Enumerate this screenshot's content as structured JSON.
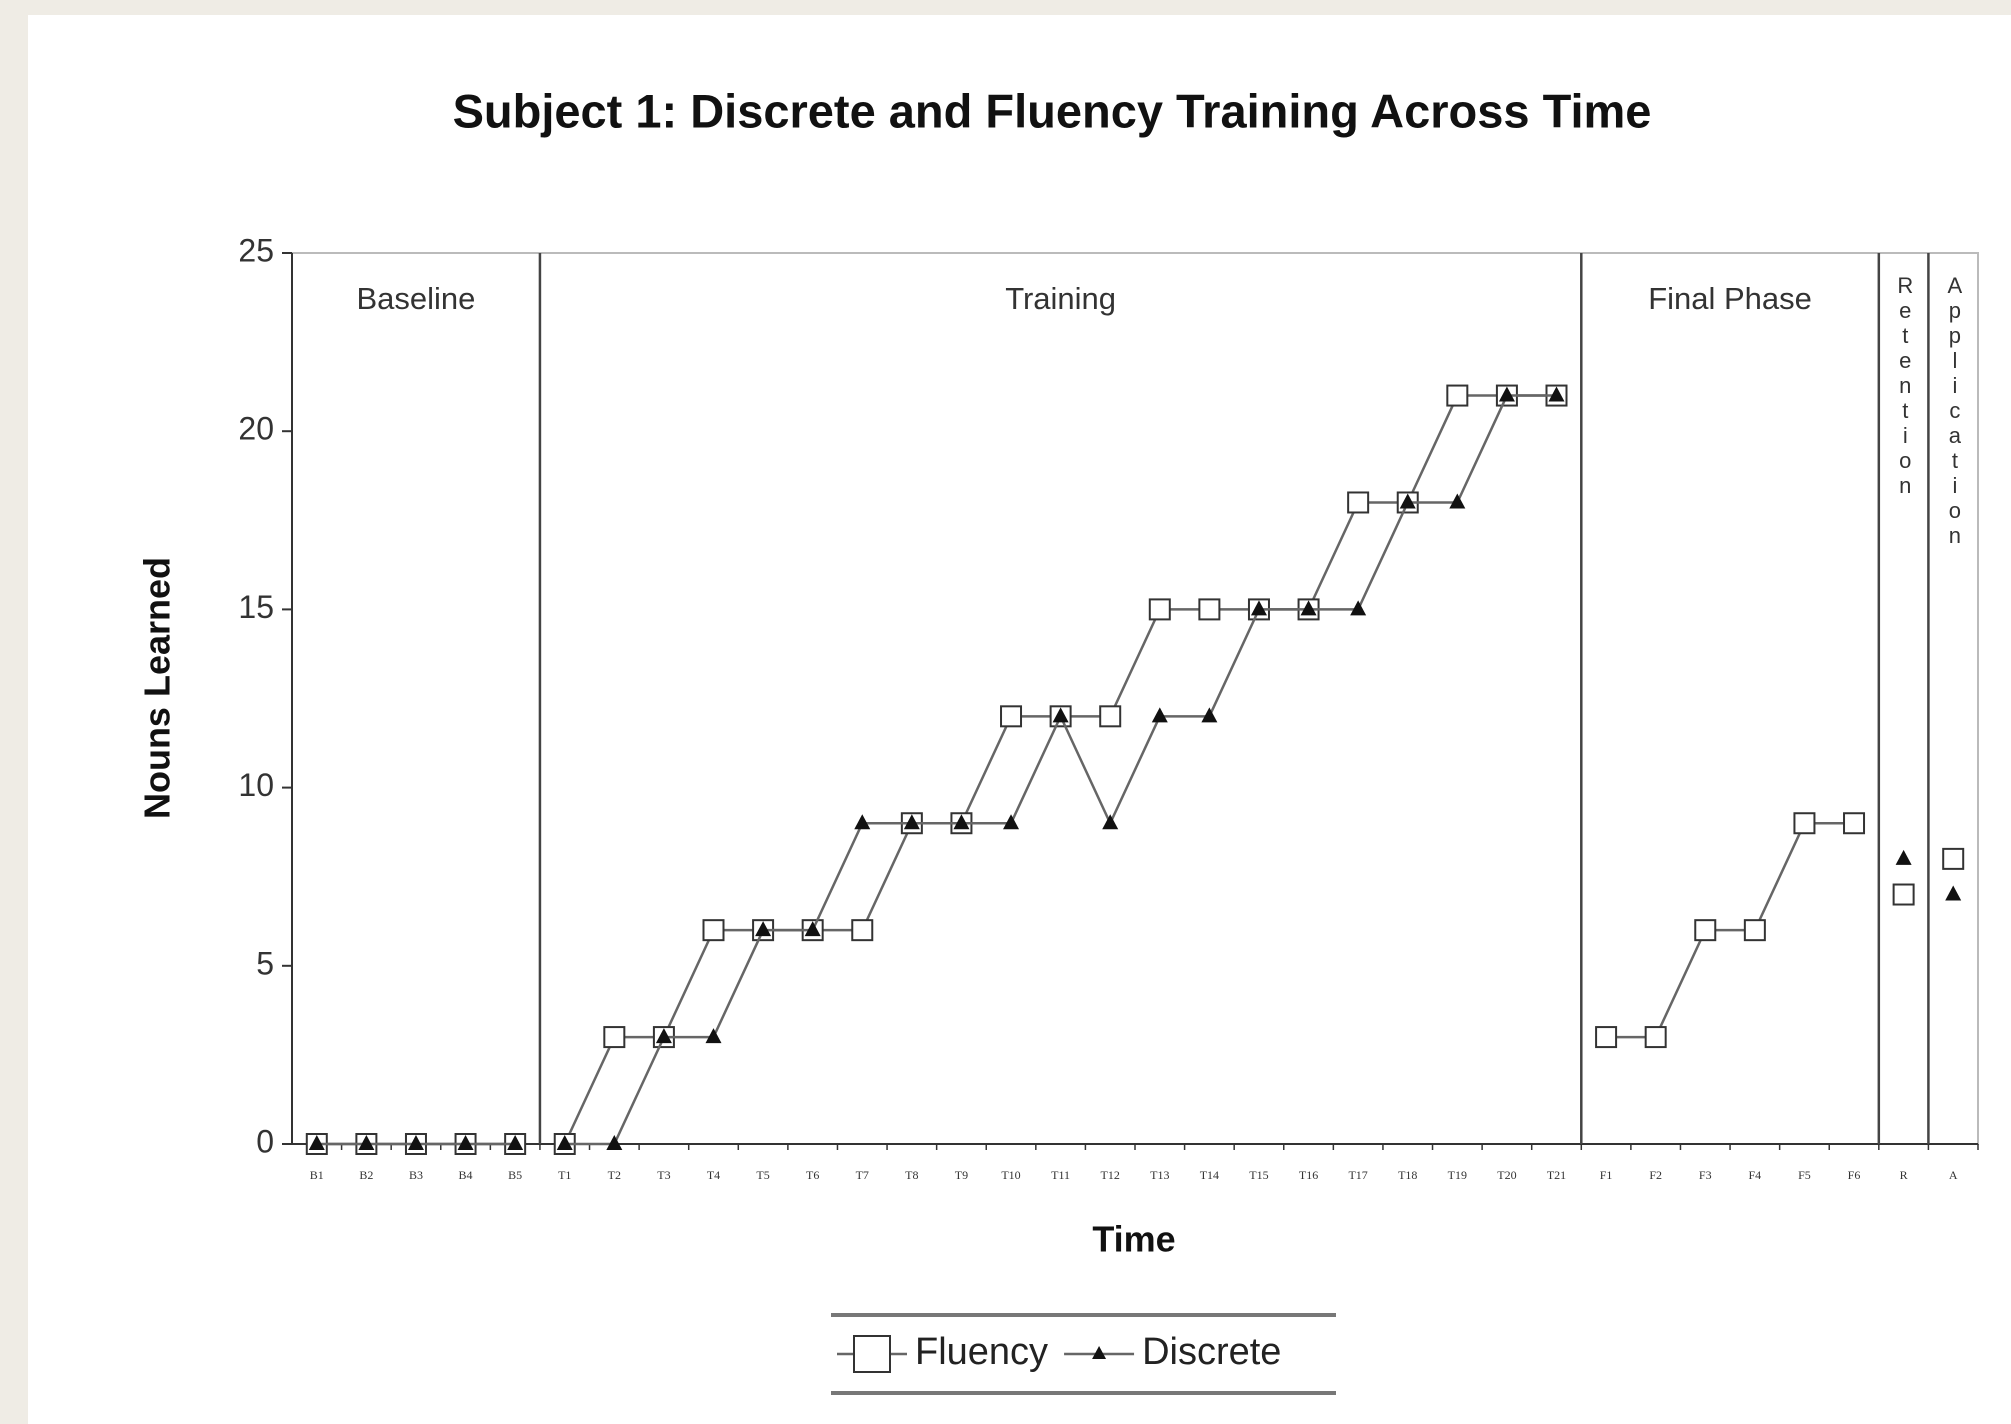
{
  "chart_data": {
    "type": "line",
    "title": "Subject 1: Discrete and Fluency Training Across Time",
    "xlabel": "Time",
    "ylabel": "Nouns Learned",
    "categories": [
      "B1",
      "B2",
      "B3",
      "B4",
      "B5",
      "T1",
      "T2",
      "T3",
      "T4",
      "T5",
      "T6",
      "T7",
      "T8",
      "T9",
      "T10",
      "T11",
      "T12",
      "T13",
      "T14",
      "T15",
      "T16",
      "T17",
      "T18",
      "T19",
      "T20",
      "T21",
      "F1",
      "F2",
      "F3",
      "F4",
      "F5",
      "F6",
      "R",
      "A"
    ],
    "phases": [
      {
        "label": "Baseline",
        "start": "B1",
        "end": "B5"
      },
      {
        "label": "Training",
        "start": "T1",
        "end": "T21"
      },
      {
        "label": "Final Phase",
        "start": "F1",
        "end": "F6"
      },
      {
        "label": "Retention",
        "start": "R",
        "end": "R"
      },
      {
        "label": "Application",
        "start": "A",
        "end": "A"
      }
    ],
    "series": [
      {
        "name": "Fluency",
        "color": "#666666",
        "marker": "square",
        "values": [
          0,
          0,
          0,
          0,
          0,
          0,
          3,
          3,
          6,
          6,
          6,
          6,
          9,
          9,
          12,
          12,
          12,
          15,
          15,
          15,
          15,
          18,
          18,
          21,
          21,
          21,
          3,
          3,
          6,
          6,
          9,
          9,
          7,
          8
        ]
      },
      {
        "name": "Discrete",
        "color": "#666666",
        "marker": "triangle",
        "values": [
          0,
          0,
          0,
          0,
          0,
          0,
          0,
          3,
          3,
          6,
          6,
          9,
          9,
          9,
          9,
          12,
          9,
          12,
          12,
          15,
          15,
          15,
          18,
          18,
          21,
          21,
          null,
          null,
          null,
          null,
          null,
          null,
          8,
          7
        ]
      }
    ],
    "ylim": [
      0,
      25
    ],
    "yticks": [
      0,
      5,
      10,
      15,
      20,
      25
    ],
    "legend": "bottom"
  }
}
